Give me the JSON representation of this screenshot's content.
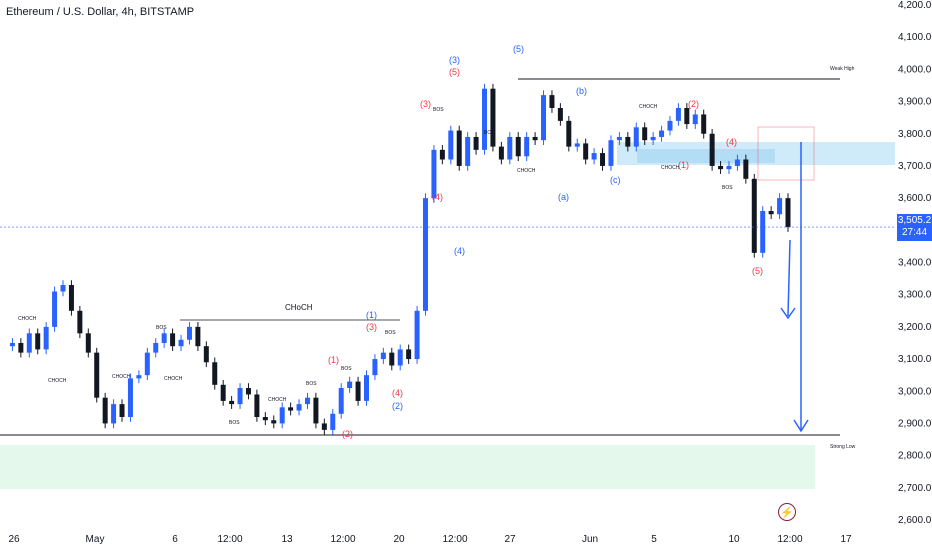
{
  "header": {
    "title": "Ethereum / U.S. Dollar, 4h, BITSTAMP"
  },
  "current_price": {
    "value": "3,505.2",
    "countdown": "27:44"
  },
  "colors": {
    "up": "#2962ff",
    "down": "#131722",
    "red": "#f23645",
    "zone_supply": "#bbe2f7",
    "zone_demand": "#d9f5e3"
  },
  "chart_data": {
    "type": "candlestick",
    "title": "Ethereum / U.S. Dollar, 4h, BITSTAMP",
    "ylim": [
      2600,
      4200
    ],
    "y_ticks": [
      "4,200.0",
      "4,100.0",
      "4,000.0",
      "3,900.0",
      "3,800.0",
      "3,700.0",
      "3,600.0",
      "3,500.0",
      "3,400.0",
      "3,300.0",
      "3,200.0",
      "3,100.0",
      "3,000.0",
      "2,900.0",
      "2,800.0",
      "2,700.0",
      "2,600.0"
    ],
    "x_ticks": [
      "26",
      "May",
      "6",
      "12:00",
      "13",
      "12:00",
      "20",
      "12:00",
      "27",
      "Jun",
      "5",
      "10",
      "12:00",
      "17"
    ],
    "price_path": [
      [
        0,
        3140
      ],
      [
        1,
        3150
      ],
      [
        2,
        3120
      ],
      [
        3,
        3180
      ],
      [
        4,
        3130
      ],
      [
        5,
        3200
      ],
      [
        6,
        3310
      ],
      [
        7,
        3330
      ],
      [
        8,
        3250
      ],
      [
        9,
        3180
      ],
      [
        10,
        3120
      ],
      [
        11,
        2980
      ],
      [
        12,
        2900
      ],
      [
        13,
        2960
      ],
      [
        14,
        2920
      ],
      [
        15,
        3040
      ],
      [
        16,
        3050
      ],
      [
        17,
        3120
      ],
      [
        18,
        3150
      ],
      [
        19,
        3180
      ],
      [
        20,
        3140
      ],
      [
        21,
        3160
      ],
      [
        22,
        3200
      ],
      [
        23,
        3140
      ],
      [
        24,
        3090
      ],
      [
        25,
        3020
      ],
      [
        26,
        2970
      ],
      [
        27,
        2960
      ],
      [
        28,
        3010
      ],
      [
        29,
        2990
      ],
      [
        30,
        2920
      ],
      [
        31,
        2910
      ],
      [
        32,
        2900
      ],
      [
        33,
        2950
      ],
      [
        34,
        2940
      ],
      [
        35,
        2960
      ],
      [
        36,
        2980
      ],
      [
        37,
        2900
      ],
      [
        38,
        2880
      ],
      [
        39,
        2930
      ],
      [
        40,
        3010
      ],
      [
        41,
        3030
      ],
      [
        42,
        2970
      ],
      [
        43,
        3050
      ],
      [
        44,
        3100
      ],
      [
        45,
        3120
      ],
      [
        46,
        3080
      ],
      [
        47,
        3130
      ],
      [
        48,
        3100
      ],
      [
        49,
        3250
      ],
      [
        50,
        3600
      ],
      [
        51,
        3750
      ],
      [
        52,
        3720
      ],
      [
        53,
        3810
      ],
      [
        54,
        3700
      ],
      [
        55,
        3790
      ],
      [
        56,
        3750
      ],
      [
        57,
        3940
      ],
      [
        58,
        3760
      ],
      [
        59,
        3720
      ],
      [
        60,
        3790
      ],
      [
        61,
        3730
      ],
      [
        62,
        3790
      ],
      [
        63,
        3780
      ],
      [
        64,
        3920
      ],
      [
        65,
        3880
      ],
      [
        66,
        3840
      ],
      [
        67,
        3760
      ],
      [
        68,
        3770
      ],
      [
        69,
        3720
      ],
      [
        70,
        3740
      ],
      [
        71,
        3700
      ],
      [
        72,
        3780
      ],
      [
        73,
        3790
      ],
      [
        74,
        3760
      ],
      [
        75,
        3820
      ],
      [
        76,
        3780
      ],
      [
        77,
        3790
      ],
      [
        78,
        3810
      ],
      [
        79,
        3840
      ],
      [
        80,
        3880
      ],
      [
        81,
        3830
      ],
      [
        82,
        3860
      ],
      [
        83,
        3800
      ],
      [
        84,
        3700
      ],
      [
        85,
        3690
      ],
      [
        86,
        3700
      ],
      [
        87,
        3720
      ],
      [
        88,
        3660
      ],
      [
        89,
        3430
      ],
      [
        90,
        3560
      ],
      [
        91,
        3550
      ],
      [
        92,
        3600
      ],
      [
        93,
        3510
      ]
    ],
    "levels": [
      {
        "name": "Weak High",
        "price": 3970
      },
      {
        "name": "Strong Low",
        "price": 2860
      },
      {
        "name": "CHoCH",
        "price": 3220
      }
    ],
    "wave_labels_red": [
      "(1)",
      "(2)",
      "(3)",
      "(4)",
      "(5)",
      "(2)",
      "(3)",
      "(4)",
      "(5)",
      "(1)",
      "(2)",
      "(3)",
      "(4)",
      "(5)"
    ],
    "wave_labels_blue": [
      "(1)",
      "(2)",
      "(3)",
      "(4)",
      "(5)",
      "(a)",
      "(b)",
      "(c)"
    ],
    "structure_labels": [
      "BOS",
      "CHOCH",
      "CHoCH"
    ]
  }
}
